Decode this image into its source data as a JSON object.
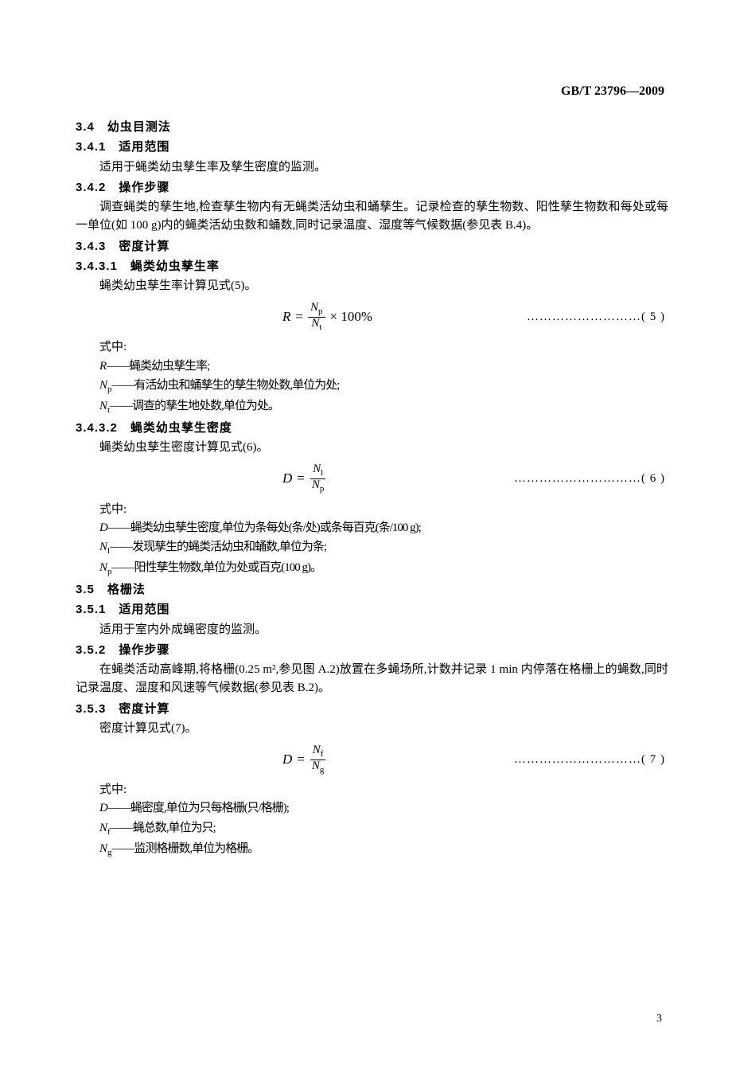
{
  "header": {
    "standard": "GB/T 23796—2009"
  },
  "s34": {
    "num": "3.4",
    "title": "幼虫目测法",
    "s341": {
      "num": "3.4.1",
      "title": "适用范围",
      "p1": "适用于蝇类幼虫孳生率及孳生密度的监测。"
    },
    "s342": {
      "num": "3.4.2",
      "title": "操作步骤",
      "p1": "调查蝇类的孳生地,检查孳生物内有无蝇类活幼虫和蛹孳生。记录检查的孳生物数、阳性孳生物数和每处或每一单位(如 100 g)内的蝇类活幼虫数和蛹数,同时记录温度、湿度等气候数据(参见表 B.4)。"
    },
    "s343": {
      "num": "3.4.3",
      "title": "密度计算"
    },
    "s3431": {
      "num": "3.4.3.1",
      "title": "蝇类幼虫孳生率",
      "p1": "蝇类幼虫孳生率计算见式(5)。",
      "eq": {
        "lhs": "R",
        "num": "N",
        "num_sub": "p",
        "den": "N",
        "den_sub": "t",
        "tail": "× 100%",
        "label": "………………………( 5 )"
      },
      "where": "式中:",
      "d1": {
        "sym": "R",
        "txt": "——蝇类幼虫孳生率;"
      },
      "d2": {
        "sym": "N",
        "sub": "p",
        "txt": "——有活幼虫和蛹孳生的孳生物处数,单位为处;"
      },
      "d3": {
        "sym": "N",
        "sub": "t",
        "txt": "——调查的孳生地处数,单位为处。"
      }
    },
    "s3432": {
      "num": "3.4.3.2",
      "title": "蝇类幼虫孳生密度",
      "p1": "蝇类幼虫孳生密度计算见式(6)。",
      "eq": {
        "lhs": "D",
        "num": "N",
        "num_sub": "l",
        "den": "N",
        "den_sub": "p",
        "label": "…………………………( 6 )"
      },
      "where": "式中:",
      "d1": {
        "sym": "D",
        "txt": "——蝇类幼虫孳生密度,单位为条每处(条/处)或条每百克(条/100 g);"
      },
      "d2": {
        "sym": "N",
        "sub": "l",
        "txt": "——发现孳生的蝇类活幼虫和蛹数,单位为条;"
      },
      "d3": {
        "sym": "N",
        "sub": "p",
        "txt": "——阳性孳生物数,单位为处或百克(100 g)。"
      }
    }
  },
  "s35": {
    "num": "3.5",
    "title": "格栅法",
    "s351": {
      "num": "3.5.1",
      "title": "适用范围",
      "p1": "适用于室内外成蝇密度的监测。"
    },
    "s352": {
      "num": "3.5.2",
      "title": "操作步骤",
      "p1": "在蝇类活动高峰期,将格栅(0.25 m²,参见图 A.2)放置在多蝇场所,计数并记录 1 min 内停落在格栅上的蝇数,同时记录温度、湿度和风速等气候数据(参见表 B.2)。"
    },
    "s353": {
      "num": "3.5.3",
      "title": "密度计算",
      "p1": "密度计算见式(7)。",
      "eq": {
        "lhs": "D",
        "num": "N",
        "num_sub": "f",
        "den": "N",
        "den_sub": "g",
        "label": "…………………………( 7 )"
      },
      "where": "式中:",
      "d1": {
        "sym": "D",
        "txt": "——蝇密度,单位为只每格栅(只/格栅);"
      },
      "d2": {
        "sym": "N",
        "sub": "f",
        "txt": "——蝇总数,单位为只;"
      },
      "d3": {
        "sym": "N",
        "sub": "g",
        "txt": "——监测格栅数,单位为格栅。"
      }
    }
  },
  "page": "3"
}
